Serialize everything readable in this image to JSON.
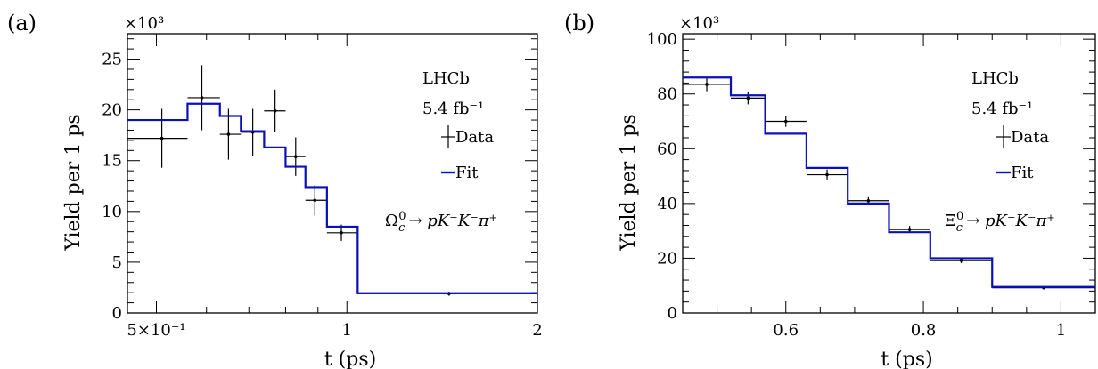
{
  "chart_data": [
    {
      "type": "histogram",
      "panel_label": "(a)",
      "xlabel": "t (ps)",
      "ylabel": "Yield per 1 ps",
      "y_multiplier": "×10³",
      "x_scale": "log",
      "xlim": [
        0.45,
        2.0
      ],
      "ylim": [
        0,
        27500
      ],
      "x_ticks": [
        {
          "value": 0.5,
          "label": "5×10⁻¹"
        },
        {
          "value": 1.0,
          "label": "1"
        },
        {
          "value": 2.0,
          "label": "2"
        }
      ],
      "y_ticks": [
        {
          "value": 0,
          "label": "0"
        },
        {
          "value": 5000,
          "label": "5"
        },
        {
          "value": 10000,
          "label": "10"
        },
        {
          "value": 15000,
          "label": "15"
        },
        {
          "value": 20000,
          "label": "20"
        },
        {
          "value": 25000,
          "label": "25"
        }
      ],
      "lhcb": "LHCb",
      "lumi": "5.4 fb⁻¹",
      "legend": {
        "data": "Data",
        "fit": "Fit"
      },
      "decay_label": "Ω_c⁰ → pK⁻K⁻π⁺",
      "decay": {
        "particle": "Ω",
        "sub": "c",
        "sup": "0",
        "rest": "→ pK⁻K⁻π⁺"
      },
      "data_points": [
        {
          "x": 0.51,
          "xlow": 0.45,
          "xhigh": 0.56,
          "y": 17200,
          "yerr": 2900
        },
        {
          "x": 0.59,
          "xlow": 0.56,
          "xhigh": 0.63,
          "y": 21200,
          "yerr": 3200
        },
        {
          "x": 0.65,
          "xlow": 0.63,
          "xhigh": 0.68,
          "y": 17600,
          "yerr": 2500
        },
        {
          "x": 0.71,
          "xlow": 0.68,
          "xhigh": 0.74,
          "y": 17800,
          "yerr": 2300
        },
        {
          "x": 0.77,
          "xlow": 0.74,
          "xhigh": 0.8,
          "y": 19900,
          "yerr": 2100
        },
        {
          "x": 0.83,
          "xlow": 0.8,
          "xhigh": 0.86,
          "y": 15400,
          "yerr": 1900
        },
        {
          "x": 0.89,
          "xlow": 0.86,
          "xhigh": 0.93,
          "y": 11100,
          "yerr": 1500
        },
        {
          "x": 0.98,
          "xlow": 0.93,
          "xhigh": 1.04,
          "y": 7900,
          "yerr": 800
        },
        {
          "x": 1.45,
          "xlow": 1.04,
          "xhigh": 2.0,
          "y": 1900,
          "yerr": 200
        }
      ],
      "fit_bins": [
        {
          "xlow": 0.45,
          "xhigh": 0.56,
          "y": 19000
        },
        {
          "xlow": 0.56,
          "xhigh": 0.63,
          "y": 20600
        },
        {
          "xlow": 0.63,
          "xhigh": 0.68,
          "y": 19400
        },
        {
          "xlow": 0.68,
          "xhigh": 0.74,
          "y": 17900
        },
        {
          "xlow": 0.74,
          "xhigh": 0.8,
          "y": 16300
        },
        {
          "xlow": 0.8,
          "xhigh": 0.86,
          "y": 14400
        },
        {
          "xlow": 0.86,
          "xhigh": 0.93,
          "y": 12400
        },
        {
          "xlow": 0.93,
          "xhigh": 1.04,
          "y": 8500
        },
        {
          "xlow": 1.04,
          "xhigh": 2.0,
          "y": 1950
        }
      ]
    },
    {
      "type": "histogram",
      "panel_label": "(b)",
      "xlabel": "t (ps)",
      "ylabel": "Yield per 1 ps",
      "y_multiplier": "×10³",
      "x_scale": "linear",
      "xlim": [
        0.45,
        1.05
      ],
      "ylim": [
        0,
        102000
      ],
      "x_ticks": [
        {
          "value": 0.6,
          "label": "0.6"
        },
        {
          "value": 0.8,
          "label": "0.8"
        },
        {
          "value": 1.0,
          "label": "1"
        }
      ],
      "y_ticks": [
        {
          "value": 0,
          "label": "0"
        },
        {
          "value": 20000,
          "label": "20"
        },
        {
          "value": 40000,
          "label": "40"
        },
        {
          "value": 60000,
          "label": "60"
        },
        {
          "value": 80000,
          "label": "80"
        },
        {
          "value": 100000,
          "label": "100"
        }
      ],
      "lhcb": "LHCb",
      "lumi": "5.4 fb⁻¹",
      "legend": {
        "data": "Data",
        "fit": "Fit"
      },
      "decay_label": "Ξ_c⁰ → pK⁻K⁻π⁺",
      "decay": {
        "particle": "Ξ",
        "sub": "c",
        "sup": "0",
        "rest": "→ pK⁻K⁻π⁺"
      },
      "data_points": [
        {
          "x": 0.485,
          "xlow": 0.45,
          "xhigh": 0.52,
          "y": 83500,
          "yerr": 2500
        },
        {
          "x": 0.545,
          "xlow": 0.52,
          "xhigh": 0.57,
          "y": 78500,
          "yerr": 2300
        },
        {
          "x": 0.6,
          "xlow": 0.57,
          "xhigh": 0.63,
          "y": 70000,
          "yerr": 2000
        },
        {
          "x": 0.66,
          "xlow": 0.63,
          "xhigh": 0.69,
          "y": 50500,
          "yerr": 1900
        },
        {
          "x": 0.72,
          "xlow": 0.69,
          "xhigh": 0.75,
          "y": 41000,
          "yerr": 1600
        },
        {
          "x": 0.78,
          "xlow": 0.75,
          "xhigh": 0.81,
          "y": 30500,
          "yerr": 1300
        },
        {
          "x": 0.855,
          "xlow": 0.81,
          "xhigh": 0.9,
          "y": 19200,
          "yerr": 1000
        },
        {
          "x": 0.975,
          "xlow": 0.9,
          "xhigh": 1.05,
          "y": 9200,
          "yerr": 600
        }
      ],
      "fit_bins": [
        {
          "xlow": 0.45,
          "xhigh": 0.52,
          "y": 86000
        },
        {
          "xlow": 0.52,
          "xhigh": 0.57,
          "y": 79500
        },
        {
          "xlow": 0.57,
          "xhigh": 0.63,
          "y": 65500
        },
        {
          "xlow": 0.63,
          "xhigh": 0.69,
          "y": 53000
        },
        {
          "xlow": 0.69,
          "xhigh": 0.75,
          "y": 40000
        },
        {
          "xlow": 0.75,
          "xhigh": 0.81,
          "y": 29500
        },
        {
          "xlow": 0.81,
          "xhigh": 0.9,
          "y": 20000
        },
        {
          "xlow": 0.9,
          "xhigh": 1.05,
          "y": 9500
        }
      ]
    }
  ],
  "colors": {
    "fit": "#0a10b8",
    "data": "#000000"
  }
}
